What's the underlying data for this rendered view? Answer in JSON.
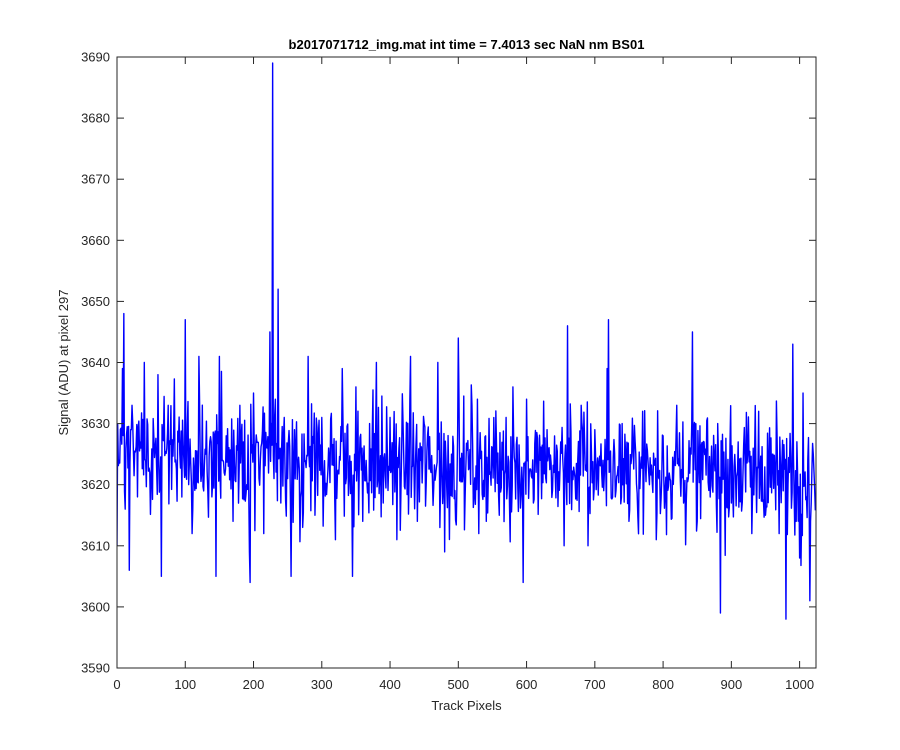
{
  "chart_data": {
    "type": "line",
    "title": "b2017071712_img.mat int time = 7.4013 sec  NaN nm BS01",
    "xlabel": "Track Pixels",
    "ylabel": "Signal (ADU) at pixel 297",
    "xlim": [
      0,
      1024
    ],
    "ylim": [
      3590,
      3690
    ],
    "xticks": [
      0,
      100,
      200,
      300,
      400,
      500,
      600,
      700,
      800,
      900,
      1000
    ],
    "yticks": [
      3590,
      3600,
      3610,
      3620,
      3630,
      3640,
      3650,
      3660,
      3670,
      3680,
      3690
    ],
    "grid": false,
    "line_color": "#0000ff",
    "series": [
      {
        "noise_summary": "approximately 1024 samples of noisy signal, mean ~3624 ADU, std ~7 ADU",
        "x": [
          0,
          3,
          8,
          10,
          12,
          18,
          22,
          30,
          40,
          50,
          60,
          65,
          75,
          90,
          100,
          110,
          120,
          130,
          140,
          145,
          150,
          160,
          170,
          180,
          190,
          195,
          200,
          210,
          215,
          220,
          224,
          226,
          228,
          230,
          232,
          236,
          240,
          245,
          250,
          255,
          260,
          270,
          280,
          290,
          300,
          310,
          320,
          330,
          340,
          345,
          350,
          360,
          370,
          380,
          390,
          400,
          410,
          420,
          430,
          440,
          450,
          460,
          470,
          480,
          490,
          500,
          510,
          520,
          530,
          540,
          550,
          560,
          570,
          580,
          590,
          595,
          600,
          610,
          620,
          630,
          640,
          650,
          655,
          660,
          670,
          680,
          690,
          700,
          710,
          718,
          720,
          730,
          740,
          750,
          760,
          770,
          780,
          790,
          800,
          810,
          820,
          830,
          840,
          843,
          850,
          860,
          870,
          880,
          884,
          890,
          900,
          910,
          920,
          930,
          940,
          950,
          960,
          970,
          976,
          980,
          985,
          990,
          995,
          1000,
          1005,
          1010,
          1015,
          1020,
          1024
        ],
        "values": [
          3610,
          3624,
          3639,
          3648,
          3616,
          3606,
          3633,
          3618,
          3640,
          3621,
          3638,
          3605,
          3633,
          3627,
          3647,
          3612,
          3641,
          3625,
          3620,
          3605,
          3641,
          3628,
          3614,
          3633,
          3620,
          3604,
          3635,
          3624,
          3612,
          3626,
          3645,
          3630,
          3689,
          3621,
          3634,
          3652,
          3617,
          3631,
          3621,
          3605,
          3629,
          3619,
          3641,
          3615,
          3631,
          3626,
          3611,
          3639,
          3622,
          3605,
          3636,
          3614,
          3630,
          3640,
          3617,
          3631,
          3611,
          3625,
          3641,
          3614,
          3630,
          3622,
          3640,
          3609,
          3625,
          3644,
          3618,
          3633,
          3612,
          3628,
          3626,
          3615,
          3631,
          3636,
          3622,
          3604,
          3634,
          3617,
          3624,
          3629,
          3622,
          3627,
          3610,
          3646,
          3622,
          3633,
          3610,
          3629,
          3622,
          3639,
          3647,
          3618,
          3630,
          3614,
          3625,
          3632,
          3620,
          3611,
          3628,
          3621,
          3633,
          3617,
          3626,
          3645,
          3614,
          3627,
          3622,
          3630,
          3599,
          3620,
          3617,
          3627,
          3624,
          3612,
          3632,
          3615,
          3625,
          3612,
          3619,
          3598,
          3622,
          3643,
          3614,
          3608,
          3635,
          3618,
          3601,
          3625,
          3629
        ]
      }
    ]
  }
}
